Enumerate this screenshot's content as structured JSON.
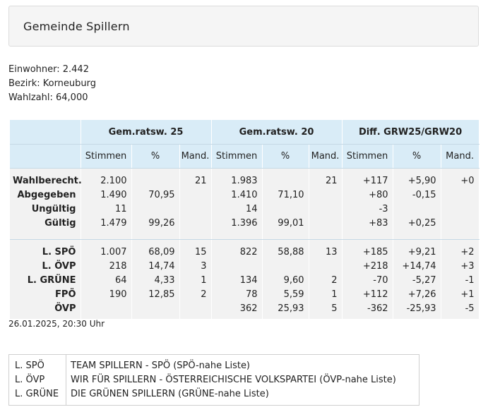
{
  "title": "Gemeinde Spillern",
  "info": {
    "einwohner": "Einwohner: 2.442",
    "bezirk": "Bezirk: Korneuburg",
    "wahlzahl": "Wahlzahl: 64,000"
  },
  "table": {
    "group_headers": [
      "Gem.ratsw. 25",
      "Gem.ratsw. 20",
      "Diff. GRW25/GRW20"
    ],
    "sub_headers": [
      "Stimmen",
      "%",
      "Mand.",
      "Stimmen",
      "%",
      "Mand.",
      "Stimmen",
      "%",
      "Mand."
    ],
    "summary_rows": [
      [
        "Wahlberecht.",
        "2.100",
        "",
        "21",
        "1.983",
        "",
        "21",
        "+117",
        "+5,90",
        "+0"
      ],
      [
        "Abgegeben",
        "1.490",
        "70,95",
        "",
        "1.410",
        "71,10",
        "",
        "+80",
        "-0,15",
        ""
      ],
      [
        "Ungültig",
        "11",
        "",
        "",
        "14",
        "",
        "",
        "-3",
        "",
        ""
      ],
      [
        "Gültig",
        "1.479",
        "99,26",
        "",
        "1.396",
        "99,01",
        "",
        "+83",
        "+0,25",
        ""
      ]
    ],
    "party_rows": [
      [
        "L. SPÖ",
        "1.007",
        "68,09",
        "15",
        "822",
        "58,88",
        "13",
        "+185",
        "+9,21",
        "+2"
      ],
      [
        "L. ÖVP",
        "218",
        "14,74",
        "3",
        "",
        "",
        "",
        "+218",
        "+14,74",
        "+3"
      ],
      [
        "L. GRÜNE",
        "64",
        "4,33",
        "1",
        "134",
        "9,60",
        "2",
        "-70",
        "-5,27",
        "-1"
      ],
      [
        "FPÖ",
        "190",
        "12,85",
        "2",
        "78",
        "5,59",
        "1",
        "+112",
        "+7,26",
        "+1"
      ],
      [
        "ÖVP",
        "",
        "",
        "",
        "362",
        "25,93",
        "5",
        "-362",
        "-25,93",
        "-5"
      ]
    ]
  },
  "timestamp": "26.01.2025, 20:30 Uhr",
  "legend": [
    {
      "abbr": "L. SPÖ",
      "name": "TEAM SPILLERN - SPÖ (SPÖ-nahe Liste)"
    },
    {
      "abbr": "L. ÖVP",
      "name": "WIR FÜR SPILLERN - ÖSTERREICHISCHE VOLKSPARTEI (ÖVP-nahe Liste)"
    },
    {
      "abbr": "L. GRÜNE",
      "name": "DIE GRÜNEN SPILLERN (GRÜNE-nahe Liste)"
    }
  ]
}
